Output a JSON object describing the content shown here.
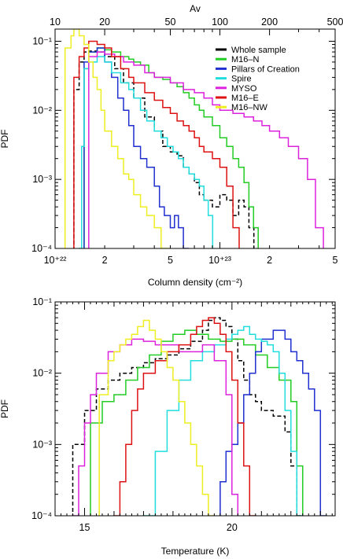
{
  "chart_data": [
    {
      "id": "column-density",
      "type": "line",
      "step": true,
      "xscale": "log",
      "yscale": "log",
      "xlim": [
        10000000000000000000000,
        500000000000000000000000
      ],
      "ylim": [
        0.0001,
        0.15
      ],
      "xlabel": "Column density (cm⁻²)",
      "ylabel": "PDF",
      "top_axis": {
        "label": "Av",
        "lim": [
          10,
          500
        ],
        "ticks": [
          {
            "value": 10,
            "label": "10"
          },
          {
            "value": 20,
            "label": "20"
          },
          {
            "value": 50,
            "label": "50"
          },
          {
            "value": 100,
            "label": "100"
          },
          {
            "value": 200,
            "label": "200"
          },
          {
            "value": 500,
            "label": "500"
          }
        ]
      },
      "xticks": [
        {
          "value": 10000000000000000000000,
          "label": "10⁺²²"
        },
        {
          "value": 20000000000000000000000,
          "label": "2"
        },
        {
          "value": 50000000000000000000000,
          "label": "5"
        },
        {
          "value": 100000000000000000000000,
          "label": "10⁺²³"
        },
        {
          "value": 200000000000000000000000,
          "label": "2"
        },
        {
          "value": 500000000000000000000000,
          "label": "5"
        }
      ],
      "yticks": [
        {
          "value": 0.1,
          "label": "10⁻¹"
        },
        {
          "value": 0.01,
          "label": "10⁻²"
        },
        {
          "value": 0.001,
          "label": "10⁻³"
        },
        {
          "value": 0.0001,
          "label": "10⁻⁴"
        }
      ],
      "legend": {
        "position": "top-right"
      },
      "series": [
        {
          "name": "Whole sample",
          "color": "#000000",
          "dashed": true,
          "x": [
            1.3e+22,
            1.4e+22,
            1.5e+22,
            1.6e+22,
            1.8e+22,
            2e+22,
            2.3e+22,
            2.6e+22,
            3e+22,
            3.5e+22,
            4e+22,
            4.5e+22,
            5e+22,
            5.5e+22,
            6e+22,
            6.5e+22,
            7e+22,
            7.5e+22,
            8e+22,
            9e+22,
            1e+23,
            1.1e+23,
            1.2e+23,
            1.3e+23,
            1.4e+23,
            1.5e+23
          ],
          "y": [
            0.02,
            0.05,
            0.07,
            0.072,
            0.07,
            0.06,
            0.04,
            0.025,
            0.015,
            0.008,
            0.005,
            0.003,
            0.0025,
            0.0022,
            0.0015,
            0.0012,
            0.0009,
            0.0006,
            0.0005,
            0.0004,
            0.0006,
            0.0005,
            0.0003,
            0.0005,
            0.0004,
            0.0002
          ]
        },
        {
          "name": "M16–N",
          "color": "#22cc22",
          "x": [
            1.5e+22,
            1.6e+22,
            1.8e+22,
            2e+22,
            2.2e+22,
            2.5e+22,
            2.8e+22,
            3e+22,
            3.3e+22,
            3.7e+22,
            4e+22,
            4.5e+22,
            5e+22,
            5.5e+22,
            6e+22,
            6.5e+22,
            7e+22,
            7.5e+22,
            8e+22,
            9e+22,
            1e+23,
            1.1e+23,
            1.2e+23,
            1.3e+23,
            1.4e+23,
            1.5e+23,
            1.6e+23
          ],
          "y": [
            0.04,
            0.07,
            0.08,
            0.075,
            0.07,
            0.06,
            0.055,
            0.05,
            0.045,
            0.035,
            0.03,
            0.028,
            0.025,
            0.022,
            0.018,
            0.015,
            0.012,
            0.01,
            0.008,
            0.006,
            0.004,
            0.003,
            0.002,
            0.0015,
            0.0009,
            0.0004,
            0.0002
          ]
        },
        {
          "name": "Pillars of Creation",
          "color": "#1f2fd0",
          "x": [
            1.5e+22,
            1.6e+22,
            1.8e+22,
            2e+22,
            2.2e+22,
            2.4e+22,
            2.6e+22,
            2.8e+22,
            3e+22,
            3.3e+22,
            3.6e+22,
            4e+22,
            4.3e+22,
            4.6e+22,
            5e+22,
            5.3e+22,
            5.6e+22,
            6e+22
          ],
          "y": [
            0.05,
            0.07,
            0.08,
            0.05,
            0.03,
            0.015,
            0.01,
            0.006,
            0.003,
            0.002,
            0.0015,
            0.0008,
            0.0004,
            0.0003,
            0.0002,
            0.0003,
            0.0002,
            0.0001
          ]
        },
        {
          "name": "Spire",
          "color": "#22dddd",
          "x": [
            1.4e+22,
            1.45e+22,
            1.5e+22,
            1.6e+22,
            1.8e+22,
            2e+22,
            2.2e+22,
            2.5e+22,
            2.8e+22,
            3e+22,
            3.3e+22,
            3.6e+22,
            4e+22,
            4.4e+22,
            4.8e+22,
            5.2e+22,
            5.6e+22,
            6e+22,
            6.5e+22,
            7e+22,
            7.5e+22,
            8e+22,
            8.5e+22
          ],
          "y": [
            0.0001,
            0.003,
            0.04,
            0.05,
            0.06,
            0.05,
            0.035,
            0.025,
            0.02,
            0.015,
            0.01,
            0.007,
            0.005,
            0.004,
            0.003,
            0.0025,
            0.002,
            0.0015,
            0.0012,
            0.001,
            0.0008,
            0.0005,
            0.0003
          ]
        },
        {
          "name": "MYSO",
          "color": "#dd22dd",
          "x": [
            1.6e+22,
            1.8e+22,
            2e+22,
            2.3e+22,
            2.6e+22,
            3e+22,
            3.5e+22,
            4e+22,
            5e+22,
            6e+22,
            7e+22,
            8e+22,
            9e+22,
            1e+23,
            1.2e+23,
            1.4e+23,
            1.6e+23,
            1.8e+23,
            2e+23,
            2.3e+23,
            2.6e+23,
            3e+23,
            3.4e+23,
            3.8e+23
          ],
          "y": [
            0.06,
            0.07,
            0.065,
            0.06,
            0.05,
            0.045,
            0.035,
            0.03,
            0.025,
            0.02,
            0.018,
            0.015,
            0.012,
            0.01,
            0.009,
            0.008,
            0.007,
            0.006,
            0.005,
            0.004,
            0.003,
            0.002,
            0.001,
            0.0002
          ]
        },
        {
          "name": "M16–E",
          "color": "#dd1111",
          "x": [
            1.3e+22,
            1.4e+22,
            1.5e+22,
            1.6e+22,
            1.8e+22,
            2e+22,
            2.2e+22,
            2.5e+22,
            2.8e+22,
            3e+22,
            3.5e+22,
            4e+22,
            4.5e+22,
            5e+22,
            5.5e+22,
            6e+22,
            6.5e+22,
            7e+22,
            7.5e+22,
            8e+22,
            9e+22,
            1e+23,
            1.1e+23,
            1.2e+23
          ],
          "y": [
            0.03,
            0.06,
            0.08,
            0.1,
            0.09,
            0.08,
            0.06,
            0.04,
            0.03,
            0.025,
            0.018,
            0.014,
            0.011,
            0.009,
            0.007,
            0.006,
            0.005,
            0.004,
            0.003,
            0.0025,
            0.002,
            0.0015,
            0.0008,
            0.0002
          ]
        },
        {
          "name": "M16–NW",
          "color": "#eeee22",
          "x": [
            1.15e+22,
            1.25e+22,
            1.3e+22,
            1.4e+22,
            1.5e+22,
            1.6e+22,
            1.7e+22,
            1.8e+22,
            1.9e+22,
            2e+22,
            2.2e+22,
            2.4e+22,
            2.6e+22,
            2.8e+22,
            3e+22,
            3.3e+22,
            3.6e+22,
            4e+22,
            4.4e+22
          ],
          "y": [
            0.08,
            0.12,
            0.15,
            0.12,
            0.09,
            0.05,
            0.03,
            0.02,
            0.01,
            0.005,
            0.003,
            0.002,
            0.0012,
            0.001,
            0.0006,
            0.0004,
            0.0003,
            0.0002,
            0.0001
          ]
        }
      ]
    },
    {
      "id": "temperature",
      "type": "line",
      "step": true,
      "xscale": "linear",
      "yscale": "log",
      "xlim": [
        14,
        23.5
      ],
      "ylim": [
        0.0001,
        0.1
      ],
      "xlabel": "Temperature (K)",
      "ylabel": "PDF",
      "xticks": [
        {
          "value": 15,
          "label": "15"
        },
        {
          "value": 20,
          "label": "20"
        }
      ],
      "yticks": [
        {
          "value": 0.1,
          "label": "10⁻¹"
        },
        {
          "value": 0.01,
          "label": "10⁻²"
        },
        {
          "value": 0.001,
          "label": "10⁻³"
        },
        {
          "value": 0.0001,
          "label": "10⁻⁴"
        }
      ],
      "series": [
        {
          "name": "Whole sample",
          "color": "#000000",
          "dashed": true,
          "x": [
            14.6,
            15.0,
            15.4,
            15.8,
            16.2,
            16.6,
            17.0,
            17.4,
            17.8,
            18.2,
            18.6,
            19.0,
            19.2,
            19.4,
            19.6,
            19.8,
            20.0,
            20.2,
            20.4,
            20.6,
            20.8,
            21.0,
            21.4,
            21.8,
            22.0,
            22.2
          ],
          "y": [
            0.001,
            0.003,
            0.006,
            0.008,
            0.01,
            0.012,
            0.014,
            0.016,
            0.018,
            0.022,
            0.028,
            0.04,
            0.055,
            0.06,
            0.055,
            0.045,
            0.03,
            0.015,
            0.008,
            0.005,
            0.004,
            0.003,
            0.0025,
            0.0015,
            0.0005,
            0.0001
          ]
        },
        {
          "name": "M16–N",
          "color": "#22cc22",
          "x": [
            15.2,
            15.6,
            16.0,
            16.4,
            16.8,
            17.2,
            17.6,
            18.0,
            18.4,
            18.8,
            19.2,
            19.6,
            20.0,
            20.4,
            20.8,
            21.2,
            21.6,
            22.0,
            22.2
          ],
          "y": [
            0.002,
            0.004,
            0.005,
            0.008,
            0.012,
            0.018,
            0.028,
            0.035,
            0.04,
            0.035,
            0.03,
            0.028,
            0.03,
            0.025,
            0.018,
            0.012,
            0.008,
            0.004,
            0.0005
          ]
        },
        {
          "name": "Pillars of Creation",
          "color": "#1f2fd0",
          "x": [
            19.6,
            19.8,
            20.0,
            20.2,
            20.4,
            20.6,
            20.8,
            21.0,
            21.4,
            21.8,
            22.0,
            22.2,
            22.4,
            22.6,
            22.8,
            23.0
          ],
          "y": [
            0.0003,
            0.0008,
            0.001,
            0.002,
            0.005,
            0.01,
            0.02,
            0.03,
            0.04,
            0.03,
            0.02,
            0.015,
            0.01,
            0.006,
            0.003,
            0.0001
          ]
        },
        {
          "name": "Spire",
          "color": "#22dddd",
          "x": [
            17.0,
            17.4,
            17.8,
            18.2,
            18.6,
            19.0,
            19.4,
            19.8,
            20.0,
            20.2,
            20.4,
            20.6,
            20.8,
            21.0,
            21.2,
            21.4,
            21.6,
            21.8,
            22.0,
            22.2
          ],
          "y": [
            0.0001,
            0.0008,
            0.003,
            0.008,
            0.015,
            0.02,
            0.025,
            0.03,
            0.035,
            0.04,
            0.045,
            0.035,
            0.03,
            0.028,
            0.025,
            0.02,
            0.01,
            0.003,
            0.0008,
            0.0001
          ]
        },
        {
          "name": "MYSO",
          "color": "#dd22dd",
          "x": [
            14.6,
            14.8,
            15.0,
            15.2,
            15.4,
            15.8,
            16.2,
            16.6,
            17.0,
            17.4,
            17.8,
            18.2,
            18.6,
            19.0,
            19.4,
            19.8,
            20.0
          ],
          "y": [
            0.0001,
            0.0005,
            0.002,
            0.005,
            0.01,
            0.02,
            0.025,
            0.03,
            0.028,
            0.025,
            0.025,
            0.02,
            0.02,
            0.025,
            0.015,
            0.005,
            0.0002
          ]
        },
        {
          "name": "M16–E",
          "color": "#dd1111",
          "x": [
            16.0,
            16.2,
            16.4,
            16.6,
            16.8,
            17.0,
            17.4,
            17.8,
            18.2,
            18.6,
            18.8,
            19.0,
            19.2,
            19.4,
            19.6,
            19.8,
            20.0,
            20.2,
            20.4,
            20.6
          ],
          "y": [
            0.0001,
            0.0003,
            0.001,
            0.003,
            0.006,
            0.01,
            0.015,
            0.02,
            0.025,
            0.035,
            0.045,
            0.055,
            0.06,
            0.05,
            0.035,
            0.02,
            0.008,
            0.002,
            0.0005,
            0.0001
          ]
        },
        {
          "name": "M16–NW",
          "color": "#eeee22",
          "x": [
            15.5,
            15.8,
            16.0,
            16.2,
            16.4,
            16.6,
            16.8,
            17.0,
            17.2,
            17.4,
            17.6,
            17.8,
            18.0,
            18.2,
            18.4,
            18.6,
            18.8,
            19.0,
            19.2
          ],
          "y": [
            0.005,
            0.015,
            0.02,
            0.025,
            0.03,
            0.035,
            0.045,
            0.055,
            0.04,
            0.03,
            0.02,
            0.012,
            0.008,
            0.004,
            0.002,
            0.001,
            0.0005,
            0.0002,
            0.0001
          ]
        }
      ]
    }
  ]
}
